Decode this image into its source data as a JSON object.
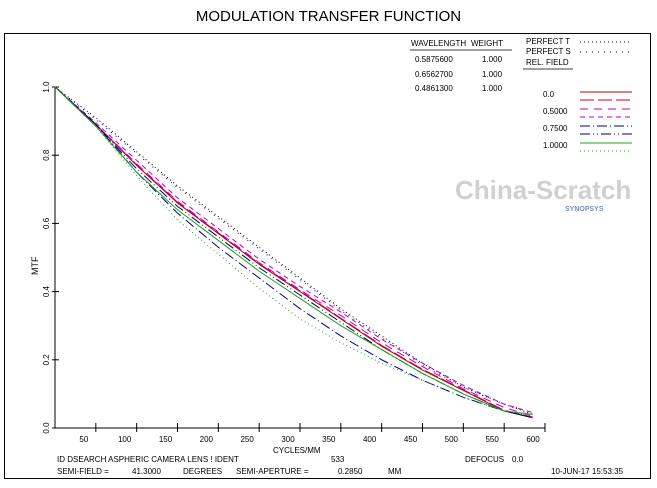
{
  "chart_data": {
    "type": "line",
    "title": "MODULATION TRANSFER FUNCTION",
    "xlabel": "CYCLES/MM",
    "ylabel": "MTF",
    "xlim": [
      0,
      600
    ],
    "ylim": [
      0,
      1
    ],
    "x_ticks": [
      "50",
      "100",
      "150",
      "200",
      "250",
      "300",
      "350",
      "400",
      "450",
      "500",
      "550",
      "600"
    ],
    "y_ticks": [
      "0.0",
      "0.2",
      "0.4",
      "0.6",
      "0.8",
      "1.0"
    ],
    "x": [
      0,
      50,
      100,
      150,
      200,
      250,
      300,
      350,
      400,
      450,
      500,
      550,
      585
    ],
    "series": [
      {
        "name": "PERFECT T",
        "color": "#000000",
        "dash": "1,3",
        "values": [
          1,
          0.91,
          0.81,
          0.71,
          0.62,
          0.53,
          0.44,
          0.35,
          0.27,
          0.19,
          0.12,
          0.07,
          0.04
        ]
      },
      {
        "name": "PERFECT S",
        "color": "#000080",
        "dash": "1,5",
        "values": [
          1,
          0.905,
          0.805,
          0.705,
          0.615,
          0.525,
          0.435,
          0.345,
          0.265,
          0.185,
          0.12,
          0.07,
          0.045
        ]
      },
      {
        "name": "0.0 T",
        "color": "#c00000",
        "dash": "",
        "values": [
          1,
          0.89,
          0.77,
          0.66,
          0.57,
          0.48,
          0.4,
          0.32,
          0.24,
          0.17,
          0.11,
          0.05,
          0.03
        ]
      },
      {
        "name": "0.0 S",
        "color": "#c00040",
        "dash": "14,4",
        "values": [
          1,
          0.89,
          0.772,
          0.662,
          0.572,
          0.482,
          0.402,
          0.322,
          0.242,
          0.172,
          0.112,
          0.052,
          0.032
        ]
      },
      {
        "name": "0.5000 T",
        "color": "#c000c0",
        "dash": "8,6",
        "values": [
          1,
          0.89,
          0.775,
          0.665,
          0.575,
          0.485,
          0.405,
          0.33,
          0.25,
          0.18,
          0.115,
          0.06,
          0.035
        ]
      },
      {
        "name": "0.5000 S",
        "color": "#c000c0",
        "dash": "5,4",
        "values": [
          1,
          0.895,
          0.785,
          0.675,
          0.585,
          0.495,
          0.415,
          0.34,
          0.26,
          0.19,
          0.125,
          0.07,
          0.045
        ]
      },
      {
        "name": "0.7500 T",
        "color": "#000080",
        "dash": "10,3,1,3",
        "values": [
          1,
          0.89,
          0.75,
          0.63,
          0.53,
          0.44,
          0.35,
          0.27,
          0.2,
          0.14,
          0.09,
          0.05,
          0.03
        ]
      },
      {
        "name": "0.7500 S",
        "color": "#000060",
        "dash": "10,3,1,3,1,3",
        "values": [
          1,
          0.89,
          0.76,
          0.65,
          0.56,
          0.47,
          0.39,
          0.31,
          0.23,
          0.16,
          0.1,
          0.05,
          0.03
        ]
      },
      {
        "name": "1.0000 T",
        "color": "#20a020",
        "dash": "",
        "values": [
          1,
          0.885,
          0.75,
          0.64,
          0.55,
          0.46,
          0.38,
          0.3,
          0.23,
          0.16,
          0.1,
          0.05,
          0.04
        ]
      },
      {
        "name": "1.0000 S",
        "color": "#20a020",
        "dash": "1,3",
        "values": [
          1,
          0.885,
          0.74,
          0.61,
          0.51,
          0.41,
          0.32,
          0.25,
          0.19,
          0.14,
          0.09,
          0.05,
          0.035
        ]
      }
    ],
    "grid": false,
    "legend_position": "top-right"
  },
  "wavelength_table": {
    "header_wavelength": "WAVELENGTH",
    "header_weight": "WEIGHT",
    "rows": [
      {
        "wavelength": "0.5875600",
        "weight": "1.000"
      },
      {
        "wavelength": "0.6562700",
        "weight": "1.000"
      },
      {
        "wavelength": "0.4861300",
        "weight": "1.000"
      }
    ]
  },
  "legend": {
    "perfect_t": "PERFECT T",
    "perfect_s": "PERFECT S",
    "rel_field": "REL. FIELD",
    "fields": [
      "0.0",
      "0.5000",
      "0.7500",
      "1.0000"
    ]
  },
  "footer": {
    "ident": "ID DSEARCH ASPHERIC CAMERA LENS ! IDENT",
    "ident_num": "533",
    "defocus": "DEFOCUS",
    "defocus_val": "0.0",
    "semi_field_label": "SEMI-FIELD =",
    "semi_field": "41.3000",
    "degrees": "DEGREES",
    "semi_aperture_label": "SEMI-APERTURE =",
    "semi_aperture": "0.2850",
    "mm": "MM",
    "timestamp": "10-JUN-17  15:53:35"
  },
  "watermark": "China-Scratch",
  "watermark_sub": "SYNOPSYS"
}
